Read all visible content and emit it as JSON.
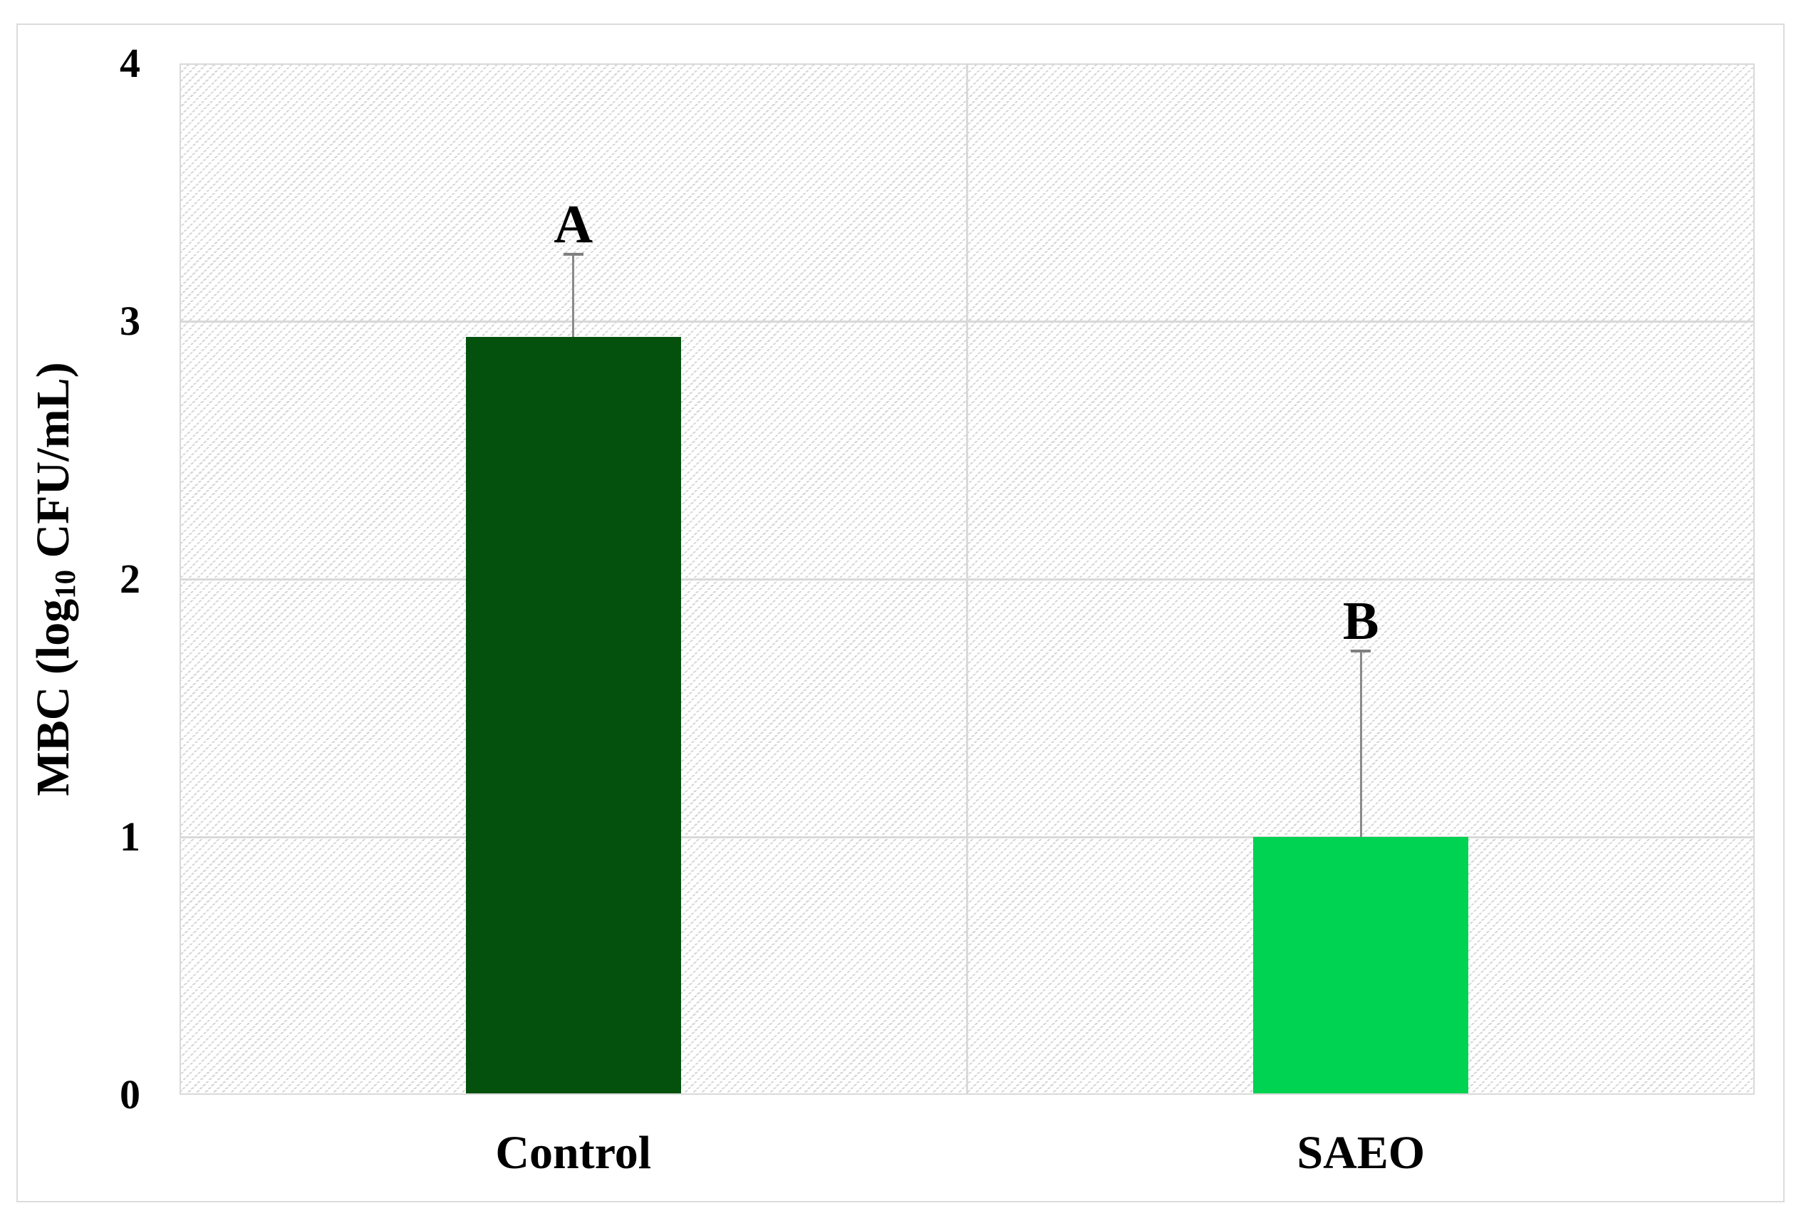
{
  "figure": {
    "background": "#ffffff",
    "frame_border_color": "#dcdcdc"
  },
  "axis": {
    "y_title_prefix": "MBC (log",
    "y_title_sub": "10",
    "y_title_suffix": " CFU/mL)"
  },
  "chart_data": {
    "type": "bar",
    "categories": [
      "Control",
      "SAEO"
    ],
    "values": [
      2.94,
      1.0
    ],
    "error_plus": [
      0.32,
      0.72
    ],
    "sig_letters": [
      "A",
      "B"
    ],
    "bar_colors": [
      "#04510e",
      "#00d251"
    ],
    "title": "",
    "xlabel": "",
    "ylabel": "MBC (log10 CFU/mL)",
    "ylim": [
      0,
      4
    ],
    "yticks": [
      0,
      1,
      2,
      3,
      4
    ],
    "grid": true,
    "grid_color": "#d9d9d9",
    "error_bar_color": "#8a8a8a",
    "plot_hatch": "light-upward-diagonal",
    "legend": "none"
  }
}
